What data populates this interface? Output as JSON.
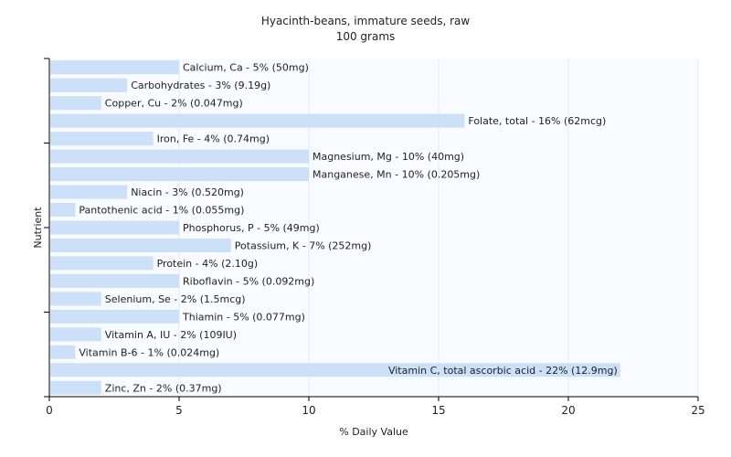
{
  "chart_data": {
    "type": "bar",
    "orientation": "horizontal",
    "title": "Hyacinth-beans, immature seeds, raw",
    "subtitle": "100 grams",
    "xlabel": "% Daily Value",
    "ylabel": "Nutrient",
    "xlim": [
      0,
      25
    ],
    "xticks": [
      "0",
      "5",
      "10",
      "15",
      "20",
      "25"
    ],
    "grid": true,
    "bar_color": "#cce0f8",
    "plot_bg": "#f8fbff",
    "categories": [
      "Calcium, Ca",
      "Carbohydrates",
      "Copper, Cu",
      "Folate, total",
      "Iron, Fe",
      "Magnesium, Mg",
      "Manganese, Mn",
      "Niacin",
      "Pantothenic acid",
      "Phosphorus, P",
      "Potassium, K",
      "Protein",
      "Riboflavin",
      "Selenium, Se",
      "Thiamin",
      "Vitamin A, IU",
      "Vitamin B-6",
      "Vitamin C, total ascorbic acid",
      "Zinc, Zn"
    ],
    "values": [
      5,
      3,
      2,
      16,
      4,
      10,
      10,
      3,
      1,
      5,
      7,
      4,
      5,
      2,
      5,
      2,
      1,
      22,
      2
    ],
    "labels": [
      "Calcium, Ca - 5% (50mg)",
      "Carbohydrates - 3% (9.19g)",
      "Copper, Cu - 2% (0.047mg)",
      "Folate, total - 16% (62mcg)",
      "Iron, Fe - 4% (0.74mg)",
      "Magnesium, Mg - 10% (40mg)",
      "Manganese, Mn - 10% (0.205mg)",
      "Niacin - 3% (0.520mg)",
      "Pantothenic acid - 1% (0.055mg)",
      "Phosphorus, P - 5% (49mg)",
      "Potassium, K - 7% (252mg)",
      "Protein - 4% (2.10g)",
      "Riboflavin - 5% (0.092mg)",
      "Selenium, Se - 2% (1.5mcg)",
      "Thiamin - 5% (0.077mg)",
      "Vitamin A, IU - 2% (109IU)",
      "Vitamin B-6 - 1% (0.024mg)",
      "Vitamin C, total ascorbic acid - 22% (12.9mg)",
      "Zinc, Zn - 2% (0.37mg)"
    ]
  }
}
